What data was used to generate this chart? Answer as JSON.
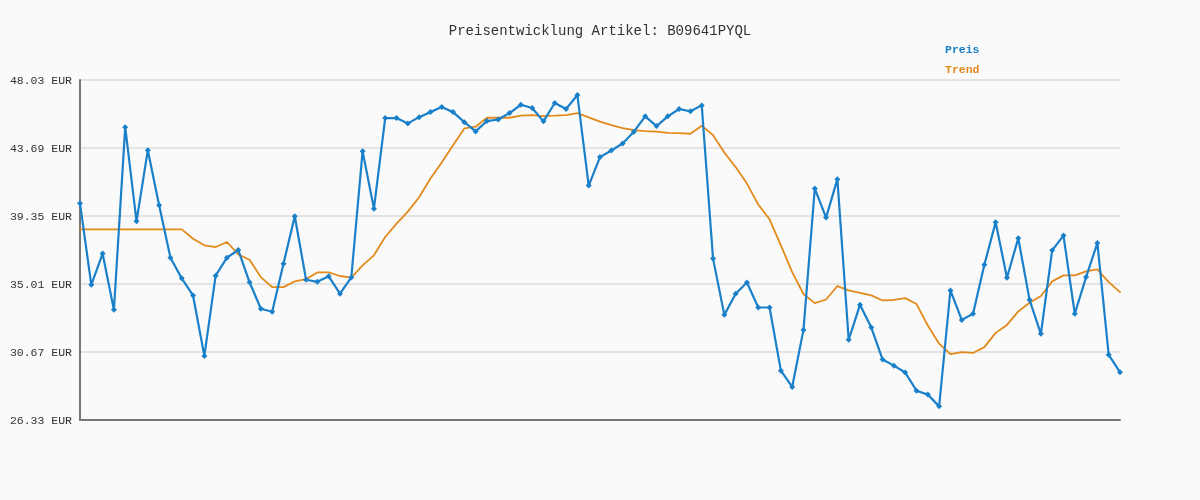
{
  "chart_data": {
    "type": "line",
    "title": "Preisentwicklung Artikel: B09641PYQL",
    "categories": [
      null,
      null,
      null,
      null,
      null,
      null,
      null,
      null,
      null,
      null,
      null,
      null,
      null,
      null,
      null,
      null,
      null,
      null,
      null,
      null,
      null,
      null,
      null,
      null,
      null,
      null,
      null,
      null,
      null,
      null,
      null,
      null,
      null,
      null,
      null,
      null,
      null,
      null,
      null,
      null,
      null,
      null,
      null,
      null,
      null,
      null,
      null,
      null,
      null,
      null,
      null,
      null,
      null,
      null,
      null,
      null,
      null,
      null,
      null,
      null,
      null,
      null,
      null,
      null,
      null,
      null,
      null,
      null,
      null,
      null,
      null,
      null,
      null,
      null,
      null,
      null,
      null,
      null,
      null,
      null,
      null,
      null,
      null,
      null,
      null,
      null,
      null,
      null,
      null,
      null,
      null,
      null,
      null
    ],
    "series": [
      {
        "name": "Preis",
        "color": "#1a80c9",
        "marker": "diamond",
        "values": [
          40.16,
          34.96,
          36.95,
          33.36,
          45.02,
          39.01,
          43.55,
          40.04,
          36.69,
          35.37,
          34.28,
          30.42,
          35.54,
          36.69,
          37.18,
          35.12,
          33.43,
          33.24,
          36.31,
          39.33,
          35.28,
          35.15,
          35.5,
          34.39,
          35.43,
          43.49,
          39.82,
          45.6,
          45.6,
          45.26,
          45.66,
          45.98,
          46.3,
          45.98,
          45.34,
          44.75,
          45.41,
          45.51,
          45.92,
          46.45,
          46.24,
          45.39,
          46.56,
          46.18,
          47.07,
          41.29,
          43.11,
          43.53,
          43.98,
          44.73,
          45.71,
          45.09,
          45.71,
          46.18,
          46.03,
          46.41,
          36.63,
          33.04,
          34.39,
          35.11,
          33.51,
          33.51,
          29.48,
          28.44,
          32.08,
          41.1,
          39.25,
          41.7,
          31.45,
          33.68,
          32.23,
          30.19,
          29.8,
          29.36,
          28.2,
          27.95,
          27.2,
          34.6,
          32.72,
          33.11,
          36.24,
          38.95,
          35.41,
          37.93,
          34.0,
          31.83,
          37.16,
          38.1,
          33.11,
          35.45,
          37.63,
          30.49,
          29.38
        ]
      },
      {
        "name": "Trend",
        "color": "#e38a1d",
        "marker": "none",
        "values": [
          38.5,
          38.5,
          38.5,
          38.5,
          38.5,
          38.5,
          38.5,
          38.5,
          38.5,
          38.5,
          37.9,
          37.48,
          37.37,
          37.69,
          36.9,
          36.56,
          35.45,
          34.81,
          34.81,
          35.18,
          35.32,
          35.75,
          35.75,
          35.52,
          35.41,
          36.2,
          36.84,
          38.01,
          38.86,
          39.63,
          40.55,
          41.74,
          42.76,
          43.87,
          44.94,
          45.05,
          45.62,
          45.62,
          45.62,
          45.75,
          45.79,
          45.73,
          45.75,
          45.79,
          45.92,
          45.65,
          45.37,
          45.15,
          44.96,
          44.83,
          44.77,
          44.73,
          44.66,
          44.64,
          44.6,
          45.11,
          44.51,
          43.4,
          42.47,
          41.42,
          40.08,
          39.14,
          37.48,
          35.77,
          34.37,
          33.79,
          34.02,
          34.88,
          34.6,
          34.45,
          34.28,
          33.96,
          33.99,
          34.11,
          33.73,
          32.36,
          31.2,
          30.53,
          30.66,
          30.61,
          30.98,
          31.89,
          32.4,
          33.26,
          33.81,
          34.24,
          35.18,
          35.56,
          35.56,
          35.82,
          35.94,
          35.13,
          34.49
        ]
      }
    ],
    "ylim": [
      26.33,
      48.03
    ],
    "yticks": [
      {
        "value": 26.33,
        "label": "26.33 EUR"
      },
      {
        "value": 30.67,
        "label": "30.67 EUR"
      },
      {
        "value": 35.01,
        "label": "35.01 EUR"
      },
      {
        "value": 39.35,
        "label": "39.35 EUR"
      },
      {
        "value": 43.69,
        "label": "43.69 EUR"
      },
      {
        "value": 48.03,
        "label": "48.03 EUR"
      }
    ],
    "grid": "y",
    "legend": "top right",
    "tick_labels": "y"
  }
}
